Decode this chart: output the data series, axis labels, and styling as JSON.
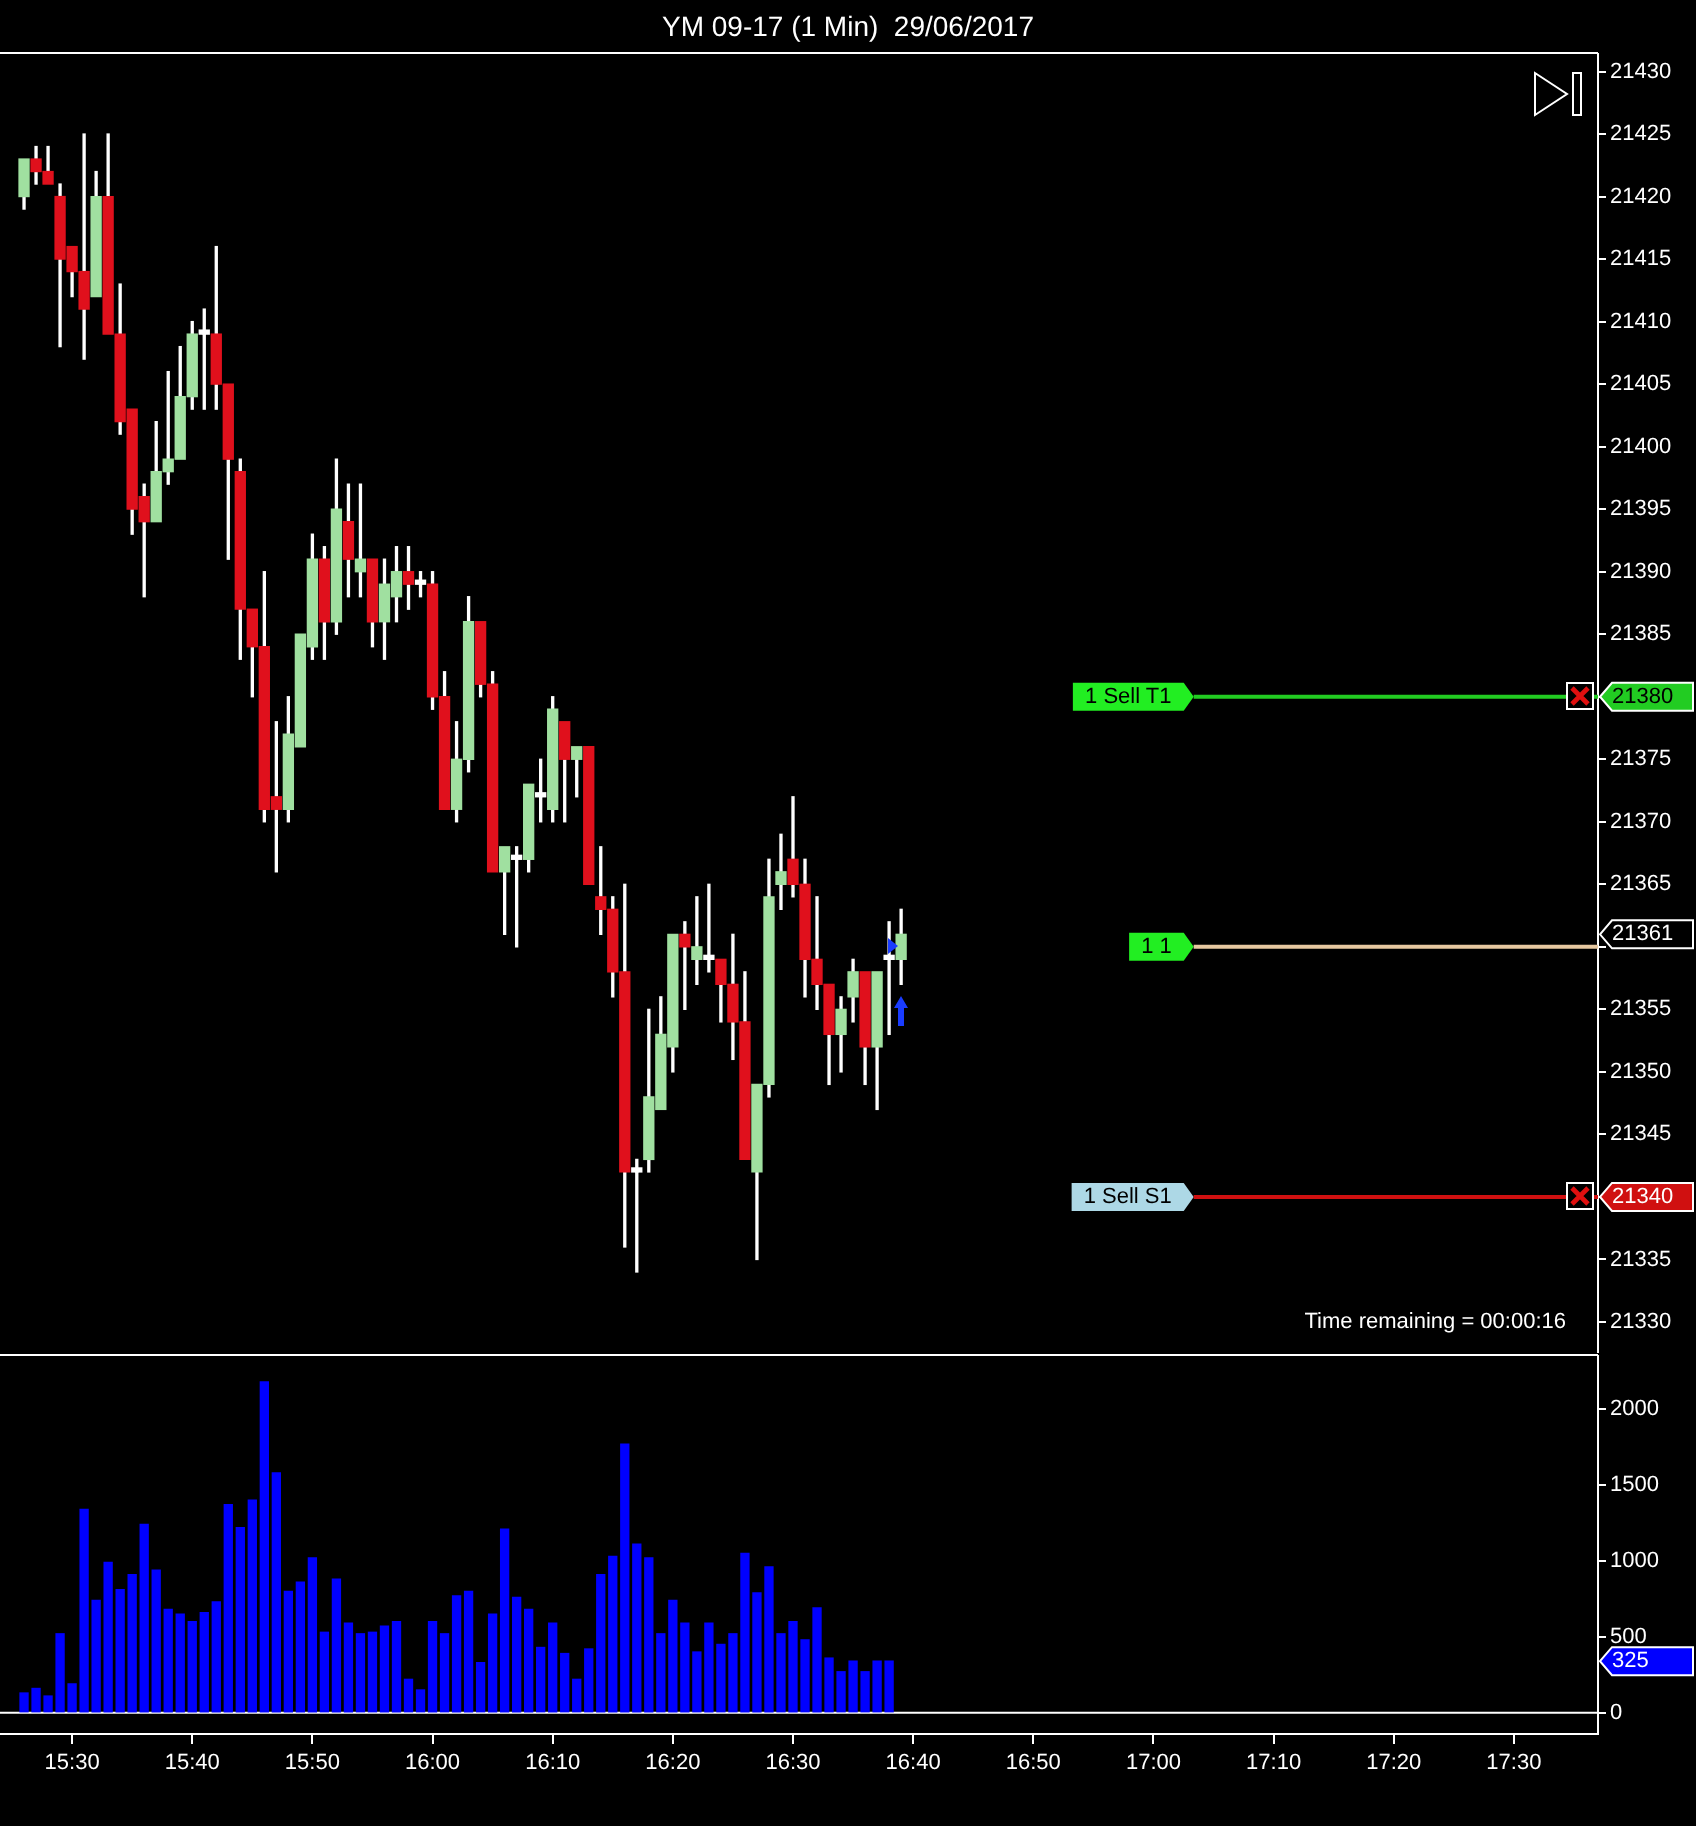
{
  "chart_data": [
    {
      "type": "candlestick",
      "title": "YM 09-17 (1 Min)  29/06/2017",
      "x": [
        "2017-06-29T15:26",
        "2017-06-29T15:27",
        "2017-06-29T15:28",
        "2017-06-29T15:29",
        "2017-06-29T15:30",
        "2017-06-29T15:31",
        "2017-06-29T15:32",
        "2017-06-29T15:33",
        "2017-06-29T15:34",
        "2017-06-29T15:35",
        "2017-06-29T15:36",
        "2017-06-29T15:37",
        "2017-06-29T15:38",
        "2017-06-29T15:39",
        "2017-06-29T15:40",
        "2017-06-29T15:41",
        "2017-06-29T15:42",
        "2017-06-29T15:43",
        "2017-06-29T15:44",
        "2017-06-29T15:45",
        "2017-06-29T15:46",
        "2017-06-29T15:47",
        "2017-06-29T15:48",
        "2017-06-29T15:49",
        "2017-06-29T15:50",
        "2017-06-29T15:51",
        "2017-06-29T15:52",
        "2017-06-29T15:53",
        "2017-06-29T15:54",
        "2017-06-29T15:55",
        "2017-06-29T15:56",
        "2017-06-29T15:57",
        "2017-06-29T15:58",
        "2017-06-29T15:59",
        "2017-06-29T16:00",
        "2017-06-29T16:01",
        "2017-06-29T16:02",
        "2017-06-29T16:03",
        "2017-06-29T16:04",
        "2017-06-29T16:05",
        "2017-06-29T16:06",
        "2017-06-29T16:07",
        "2017-06-29T16:08",
        "2017-06-29T16:09",
        "2017-06-29T16:10",
        "2017-06-29T16:11",
        "2017-06-29T16:12",
        "2017-06-29T16:13",
        "2017-06-29T16:14",
        "2017-06-29T16:15",
        "2017-06-29T16:16",
        "2017-06-29T16:17",
        "2017-06-29T16:18",
        "2017-06-29T16:19",
        "2017-06-29T16:20",
        "2017-06-29T16:21",
        "2017-06-29T16:22",
        "2017-06-29T16:23",
        "2017-06-29T16:24",
        "2017-06-29T16:25",
        "2017-06-29T16:26",
        "2017-06-29T16:27",
        "2017-06-29T16:28",
        "2017-06-29T16:29",
        "2017-06-29T16:30",
        "2017-06-29T16:31",
        "2017-06-29T16:32",
        "2017-06-29T16:33",
        "2017-06-29T16:34",
        "2017-06-29T16:35",
        "2017-06-29T16:36",
        "2017-06-29T16:37",
        "2017-06-29T16:38",
        "2017-06-29T16:39"
      ],
      "ohlc": [
        [
          21420,
          21423,
          21419,
          21423
        ],
        [
          21423,
          21424,
          21421,
          21422
        ],
        [
          21422,
          21424,
          21421,
          21421
        ],
        [
          21420,
          21421,
          21408,
          21415
        ],
        [
          21416,
          21416,
          21412,
          21414
        ],
        [
          21414,
          21425,
          21407,
          21411
        ],
        [
          21412,
          21422,
          21412,
          21420
        ],
        [
          21420,
          21425,
          21409,
          21409
        ],
        [
          21409,
          21413,
          21401,
          21402
        ],
        [
          21403,
          21403,
          21393,
          21395
        ],
        [
          21396,
          21397,
          21388,
          21394
        ],
        [
          21394,
          21402,
          21394,
          21398
        ],
        [
          21398,
          21406,
          21397,
          21399
        ],
        [
          21399,
          21408,
          21399,
          21404
        ],
        [
          21404,
          21410,
          21403,
          21409
        ],
        [
          21409,
          21411,
          21403,
          21409
        ],
        [
          21409,
          21416,
          21403,
          21405
        ],
        [
          21405,
          21405,
          21391,
          21399
        ],
        [
          21398,
          21399,
          21383,
          21387
        ],
        [
          21387,
          21387,
          21380,
          21384
        ],
        [
          21384,
          21390,
          21370,
          21371
        ],
        [
          21372,
          21378,
          21366,
          21371
        ],
        [
          21371,
          21380,
          21370,
          21377
        ],
        [
          21376,
          21385,
          21376,
          21385
        ],
        [
          21384,
          21393,
          21383,
          21391
        ],
        [
          21391,
          21392,
          21383,
          21386
        ],
        [
          21386,
          21399,
          21385,
          21395
        ],
        [
          21394,
          21397,
          21388,
          21391
        ],
        [
          21390,
          21397,
          21388,
          21391
        ],
        [
          21391,
          21391,
          21384,
          21386
        ],
        [
          21386,
          21391,
          21383,
          21389
        ],
        [
          21388,
          21392,
          21386,
          21390
        ],
        [
          21390,
          21392,
          21387,
          21389
        ],
        [
          21389,
          21390,
          21388,
          21389
        ],
        [
          21389,
          21390,
          21379,
          21380
        ],
        [
          21380,
          21382,
          21371,
          21371
        ],
        [
          21371,
          21378,
          21370,
          21375
        ],
        [
          21375,
          21388,
          21374,
          21386
        ],
        [
          21386,
          21386,
          21380,
          21381
        ],
        [
          21381,
          21382,
          21366,
          21366
        ],
        [
          21366,
          21368,
          21361,
          21368
        ],
        [
          21367,
          21368,
          21360,
          21367
        ],
        [
          21367,
          21373,
          21366,
          21373
        ],
        [
          21372,
          21375,
          21370,
          21372
        ],
        [
          21371,
          21380,
          21370,
          21379
        ],
        [
          21378,
          21378,
          21370,
          21375
        ],
        [
          21375,
          21376,
          21372,
          21376
        ],
        [
          21376,
          21376,
          21365,
          21365
        ],
        [
          21364,
          21368,
          21361,
          21363
        ],
        [
          21363,
          21364,
          21356,
          21358
        ],
        [
          21358,
          21365,
          21336,
          21342
        ],
        [
          21342,
          21343,
          21334,
          21342
        ],
        [
          21343,
          21355,
          21342,
          21348
        ],
        [
          21347,
          21356,
          21347,
          21353
        ],
        [
          21352,
          21361,
          21350,
          21361
        ],
        [
          21361,
          21362,
          21355,
          21360
        ],
        [
          21359,
          21364,
          21357,
          21360
        ],
        [
          21359,
          21365,
          21358,
          21359
        ],
        [
          21359,
          21359,
          21354,
          21357
        ],
        [
          21357,
          21361,
          21351,
          21354
        ],
        [
          21354,
          21358,
          21343,
          21343
        ],
        [
          21342,
          21349,
          21335,
          21349
        ],
        [
          21349,
          21367,
          21348,
          21364
        ],
        [
          21365,
          21369,
          21363,
          21366
        ],
        [
          21367,
          21372,
          21364,
          21365
        ],
        [
          21365,
          21367,
          21356,
          21359
        ],
        [
          21359,
          21364,
          21355,
          21357
        ],
        [
          21357,
          21357,
          21349,
          21353
        ],
        [
          21353,
          21356,
          21350,
          21355
        ],
        [
          21356,
          21359,
          21354,
          21358
        ],
        [
          21358,
          21358,
          21349,
          21352
        ],
        [
          21352,
          21358,
          21347,
          21358
        ],
        [
          21359,
          21362,
          21353,
          21359
        ],
        [
          21359,
          21363,
          21357,
          21361
        ]
      ],
      "colors": [
        "#a0e0a0",
        "#e0101c",
        "#e0101c",
        "#e0101c",
        "#e0101c",
        "#e0101c",
        "#a0e0a0",
        "#e0101c",
        "#e0101c",
        "#e0101c",
        "#e0101c",
        "#a0e0a0",
        "#a0e0a0",
        "#a0e0a0",
        "#a0e0a0",
        "#ffffff",
        "#e0101c",
        "#e0101c",
        "#e0101c",
        "#e0101c",
        "#e0101c",
        "#e0101c",
        "#a0e0a0",
        "#a0e0a0",
        "#a0e0a0",
        "#e0101c",
        "#a0e0a0",
        "#e0101c",
        "#a0e0a0",
        "#e0101c",
        "#a0e0a0",
        "#a0e0a0",
        "#e0101c",
        "#ffffff",
        "#e0101c",
        "#e0101c",
        "#a0e0a0",
        "#a0e0a0",
        "#e0101c",
        "#e0101c",
        "#a0e0a0",
        "#ffffff",
        "#a0e0a0",
        "#ffffff",
        "#a0e0a0",
        "#e0101c",
        "#a0e0a0",
        "#e0101c",
        "#e0101c",
        "#e0101c",
        "#e0101c",
        "#ffffff",
        "#a0e0a0",
        "#a0e0a0",
        "#a0e0a0",
        "#e0101c",
        "#a0e0a0",
        "#ffffff",
        "#e0101c",
        "#e0101c",
        "#e0101c",
        "#a0e0a0",
        "#a0e0a0",
        "#a0e0a0",
        "#e0101c",
        "#e0101c",
        "#e0101c",
        "#e0101c",
        "#a0e0a0",
        "#a0e0a0",
        "#e0101c",
        "#a0e0a0",
        "#ffffff",
        "#a0e0a0"
      ],
      "xlim": [
        "2017-06-29T15:24",
        "2017-06-29T17:37"
      ],
      "ylim": [
        21327.6,
        21431.4
      ],
      "yticks": [
        21330,
        21335,
        21340,
        21345,
        21350,
        21355,
        {
          "value": 21360,
          "label": null
        },
        21365,
        21370,
        21375,
        21380,
        21385,
        21390,
        21395,
        21400,
        21405,
        21410,
        21415,
        21420,
        21425,
        21430
      ],
      "tick_labels": "y",
      "ref_lines": [
        {
          "axis": "y",
          "value": 21380,
          "label": "1 Sell T1",
          "color": "#22cc22"
        },
        {
          "axis": "y",
          "value": 21360,
          "color": "#e6c8a0"
        },
        {
          "axis": "y",
          "value": 21340,
          "label": "1 Sell S1",
          "color": "#d01010"
        }
      ],
      "annotations": [
        "21361",
        "1 1",
        "Time remaining = 00:00:16"
      ]
    },
    {
      "type": "bar",
      "x": [
        "2017-06-29T15:26",
        "2017-06-29T15:27",
        "2017-06-29T15:28",
        "2017-06-29T15:29",
        "2017-06-29T15:30",
        "2017-06-29T15:31",
        "2017-06-29T15:32",
        "2017-06-29T15:33",
        "2017-06-29T15:34",
        "2017-06-29T15:35",
        "2017-06-29T15:36",
        "2017-06-29T15:37",
        "2017-06-29T15:38",
        "2017-06-29T15:39",
        "2017-06-29T15:40",
        "2017-06-29T15:41",
        "2017-06-29T15:42",
        "2017-06-29T15:43",
        "2017-06-29T15:44",
        "2017-06-29T15:45",
        "2017-06-29T15:46",
        "2017-06-29T15:47",
        "2017-06-29T15:48",
        "2017-06-29T15:49",
        "2017-06-29T15:50",
        "2017-06-29T15:51",
        "2017-06-29T15:52",
        "2017-06-29T15:53",
        "2017-06-29T15:54",
        "2017-06-29T15:55",
        "2017-06-29T15:56",
        "2017-06-29T15:57",
        "2017-06-29T15:58",
        "2017-06-29T15:59",
        "2017-06-29T16:00",
        "2017-06-29T16:01",
        "2017-06-29T16:02",
        "2017-06-29T16:03",
        "2017-06-29T16:04",
        "2017-06-29T16:05",
        "2017-06-29T16:06",
        "2017-06-29T16:07",
        "2017-06-29T16:08",
        "2017-06-29T16:09",
        "2017-06-29T16:10",
        "2017-06-29T16:11",
        "2017-06-29T16:12",
        "2017-06-29T16:13",
        "2017-06-29T16:14",
        "2017-06-29T16:15",
        "2017-06-29T16:16",
        "2017-06-29T16:17",
        "2017-06-29T16:18",
        "2017-06-29T16:19",
        "2017-06-29T16:20",
        "2017-06-29T16:21",
        "2017-06-29T16:22",
        "2017-06-29T16:23",
        "2017-06-29T16:24",
        "2017-06-29T16:25",
        "2017-06-29T16:26",
        "2017-06-29T16:27",
        "2017-06-29T16:28",
        "2017-06-29T16:29",
        "2017-06-29T16:30",
        "2017-06-29T16:31",
        "2017-06-29T16:32",
        "2017-06-29T16:33",
        "2017-06-29T16:34",
        "2017-06-29T16:35",
        "2017-06-29T16:36",
        "2017-06-29T16:37",
        "2017-06-29T16:38"
      ],
      "values": [
        130,
        160,
        110,
        520,
        190,
        1340,
        740,
        990,
        810,
        910,
        1240,
        940,
        680,
        650,
        600,
        660,
        730,
        1370,
        1220,
        1400,
        2180,
        1580,
        800,
        860,
        1020,
        530,
        880,
        590,
        520,
        530,
        570,
        600,
        220,
        150,
        600,
        520,
        770,
        800,
        330,
        650,
        1210,
        760,
        680,
        430,
        590,
        390,
        220,
        420,
        910,
        1030,
        1770,
        1110,
        1020,
        520,
        740,
        590,
        400,
        590,
        450,
        520,
        1050,
        790,
        960,
        520,
        600,
        480,
        690,
        360,
        270,
        340,
        270,
        340,
        340
      ],
      "color": "#0000ff",
      "xlim": [
        "2017-06-29T15:24",
        "2017-06-29T17:37"
      ],
      "xticks": [
        {
          "value": "2017-06-29T15:30",
          "label": "15:30"
        },
        {
          "value": "2017-06-29T15:40",
          "label": "15:40"
        },
        {
          "value": "2017-06-29T15:50",
          "label": "15:50"
        },
        {
          "value": "2017-06-29T16:00",
          "label": "16:00"
        },
        {
          "value": "2017-06-29T16:10",
          "label": "16:10"
        },
        {
          "value": "2017-06-29T16:20",
          "label": "16:20"
        },
        {
          "value": "2017-06-29T16:30",
          "label": "16:30"
        },
        {
          "value": "2017-06-29T16:40",
          "label": "16:40"
        },
        {
          "value": "2017-06-29T16:50",
          "label": "16:50"
        },
        {
          "value": "2017-06-29T17:00",
          "label": "17:00"
        },
        {
          "value": "2017-06-29T17:10",
          "label": "17:10"
        },
        {
          "value": "2017-06-29T17:20",
          "label": "17:20"
        },
        {
          "value": "2017-06-29T17:30",
          "label": "17:30"
        }
      ],
      "ylim": [
        -140,
        2350
      ],
      "yticks": [
        0,
        500,
        1000,
        1500,
        2000
      ],
      "ref_lines": [
        {
          "axis": "y",
          "value": 0,
          "color": "#ffffff"
        }
      ],
      "annotations": [
        "325"
      ]
    }
  ]
}
